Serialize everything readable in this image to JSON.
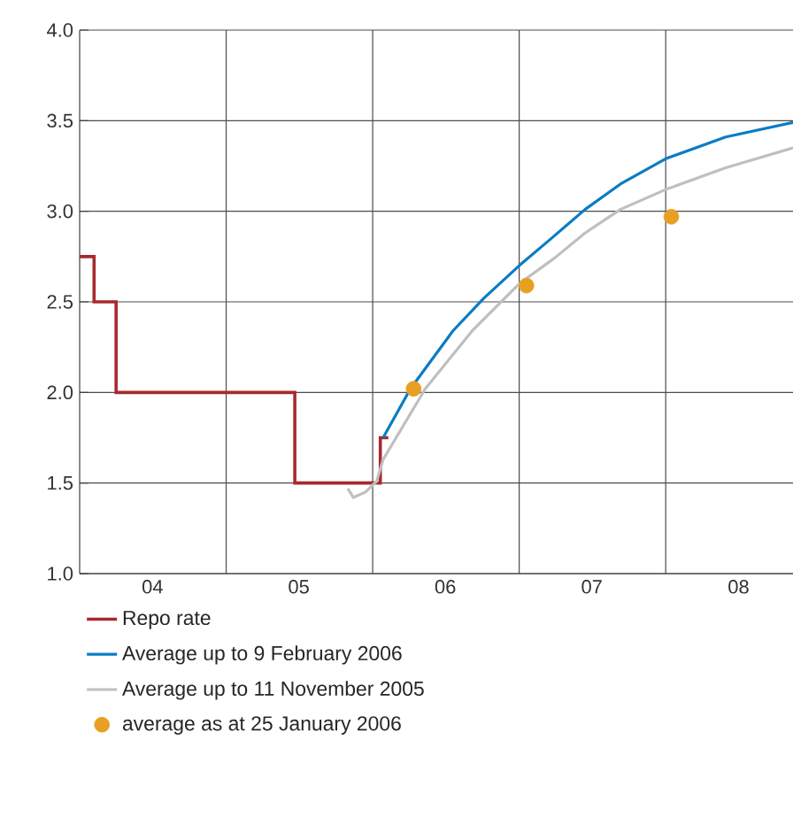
{
  "chart_data": {
    "type": "line",
    "xlim": [
      "2004-01-01",
      "2008-11-14"
    ],
    "ylim": [
      1.0,
      4.0
    ],
    "xticks": [
      {
        "value": "2004-07-01",
        "label": "04"
      },
      {
        "value": "2005-07-01",
        "label": "05"
      },
      {
        "value": "2006-07-01",
        "label": "06"
      },
      {
        "value": "2007-07-01",
        "label": "07"
      },
      {
        "value": "2008-07-01",
        "label": "08"
      },
      {
        "value": "2005-01-01",
        "label": null
      },
      {
        "value": "2006-01-01",
        "label": null
      },
      {
        "value": "2007-01-01",
        "label": null
      },
      {
        "value": "2008-01-01",
        "label": null
      }
    ],
    "yticks": [
      {
        "value": 1.0,
        "label": "1.0"
      },
      {
        "value": 1.5,
        "label": "1.5"
      },
      {
        "value": 2.0,
        "label": "2.0"
      },
      {
        "value": 2.5,
        "label": "2.5"
      },
      {
        "value": 3.0,
        "label": "3.0"
      },
      {
        "value": 3.5,
        "label": "3.5"
      },
      {
        "value": 4.0,
        "label": "4.0"
      }
    ],
    "grid": true,
    "legend": "bottom",
    "series": [
      {
        "name": "Repo rate",
        "type": "step",
        "color": "#a8292e",
        "x": [
          "2004-01-01",
          "2004-02-06",
          "2004-04-01",
          "2005-06-21",
          "2006-01-20",
          "2006-02-09"
        ],
        "values": [
          2.75,
          2.5,
          2.0,
          1.5,
          1.75,
          1.75
        ]
      },
      {
        "name": "Average up to 9 February 2006",
        "color": "#0a7cc4",
        "x": [
          "2006-01-27",
          "2006-04-05",
          "2006-07-20",
          "2006-10-05",
          "2007-01-01",
          "2007-03-22",
          "2007-06-14",
          "2007-09-10",
          "2008-01-01",
          "2008-05-30",
          "2008-11-14"
        ],
        "values": [
          1.75,
          2.02,
          2.34,
          2.52,
          2.7,
          2.85,
          3.01,
          3.15,
          3.29,
          3.41,
          3.49
        ]
      },
      {
        "name": "Average up to 11 November 2005",
        "color": "#bfbfbf",
        "x": [
          "2005-10-31",
          "2005-11-14",
          "2005-12-14",
          "2006-01-11",
          "2006-01-27",
          "2006-05-12",
          "2006-09-06",
          "2007-01-01",
          "2007-03-29",
          "2007-06-14",
          "2007-09-10",
          "2008-01-01",
          "2008-05-30",
          "2008-11-14"
        ],
        "values": [
          1.47,
          1.42,
          1.45,
          1.51,
          1.63,
          2.02,
          2.34,
          2.6,
          2.74,
          2.88,
          3.01,
          3.12,
          3.24,
          3.35
        ]
      },
      {
        "name": "average as at 25 January 2006",
        "type": "scatter",
        "marker": "circle",
        "color": "#e8a023",
        "x": [
          "2006-04-13",
          "2007-01-19",
          "2008-01-15"
        ],
        "values": [
          2.02,
          2.59,
          2.97
        ]
      }
    ]
  }
}
